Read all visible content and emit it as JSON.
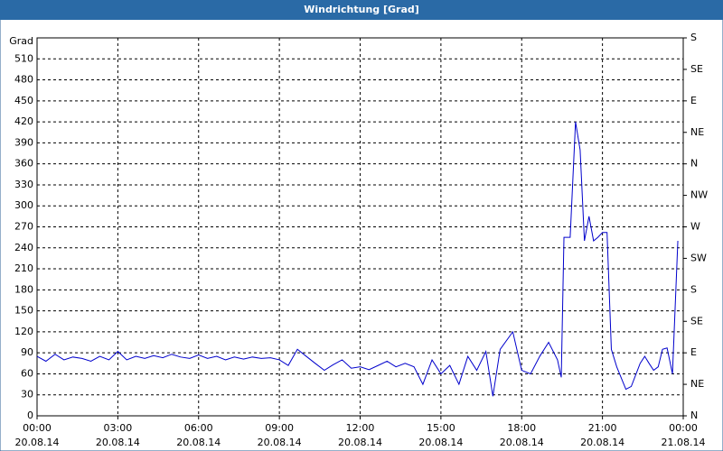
{
  "chart_data": {
    "type": "line",
    "title": "Windrichtung [Grad]",
    "y_label": "Grad",
    "color": "#0000cc",
    "grid": true,
    "xlim": [
      0,
      24
    ],
    "ylim": [
      0,
      540
    ],
    "y2lim": [
      0,
      540
    ],
    "xticks": [
      {
        "value": 0,
        "label": [
          "00:00",
          "20.08.14"
        ]
      },
      {
        "value": 3,
        "label": [
          "03:00",
          "20.08.14"
        ]
      },
      {
        "value": 6,
        "label": [
          "06:00",
          "20.08.14"
        ]
      },
      {
        "value": 9,
        "label": [
          "09:00",
          "20.08.14"
        ]
      },
      {
        "value": 12,
        "label": [
          "12:00",
          "20.08.14"
        ]
      },
      {
        "value": 15,
        "label": [
          "15:00",
          "20.08.14"
        ]
      },
      {
        "value": 18,
        "label": [
          "18:00",
          "20.08.14"
        ]
      },
      {
        "value": 21,
        "label": [
          "21:00",
          "20.08.14"
        ]
      },
      {
        "value": 24,
        "label": [
          "00:00",
          "21.08.14"
        ]
      }
    ],
    "yticks": [
      0,
      30,
      60,
      90,
      120,
      150,
      180,
      210,
      240,
      270,
      300,
      330,
      360,
      390,
      420,
      450,
      480,
      510
    ],
    "y2ticks": [
      {
        "value": 0,
        "label": "N"
      },
      {
        "value": 45,
        "label": "NE"
      },
      {
        "value": 90,
        "label": "E"
      },
      {
        "value": 135,
        "label": "SE"
      },
      {
        "value": 180,
        "label": "S"
      },
      {
        "value": 225,
        "label": "SW"
      },
      {
        "value": 270,
        "label": "W"
      },
      {
        "value": 315,
        "label": "NW"
      },
      {
        "value": 360,
        "label": "N"
      },
      {
        "value": 405,
        "label": "NE"
      },
      {
        "value": 450,
        "label": "E"
      },
      {
        "value": 495,
        "label": "SE"
      },
      {
        "value": 540,
        "label": "S"
      }
    ],
    "x": [
      0,
      0.33,
      0.67,
      1,
      1.33,
      1.67,
      2,
      2.33,
      2.67,
      3,
      3.33,
      3.67,
      4,
      4.33,
      4.67,
      5,
      5.33,
      5.67,
      6,
      6.33,
      6.67,
      7,
      7.33,
      7.67,
      8,
      8.33,
      8.67,
      9,
      9.33,
      9.67,
      10,
      10.33,
      10.67,
      11,
      11.33,
      11.67,
      12,
      12.33,
      12.67,
      13,
      13.33,
      13.67,
      14,
      14.33,
      14.67,
      15,
      15.33,
      15.67,
      16,
      16.33,
      16.67,
      16.93,
      17.2,
      17.67,
      18,
      18.33,
      18.67,
      19,
      19.33,
      19.47,
      19.57,
      19.8,
      20,
      20.17,
      20.33,
      20.5,
      20.67,
      20.83,
      21,
      21.17,
      21.33,
      21.53,
      21.87,
      22.07,
      22.4,
      22.57,
      22.73,
      22.9,
      23.07,
      23.23,
      23.4,
      23.6,
      23.8
    ],
    "values": [
      85,
      78,
      88,
      80,
      84,
      82,
      78,
      85,
      80,
      92,
      80,
      85,
      82,
      86,
      83,
      88,
      84,
      82,
      87,
      82,
      85,
      80,
      84,
      81,
      84,
      82,
      83,
      80,
      72,
      95,
      85,
      75,
      65,
      73,
      80,
      68,
      70,
      66,
      72,
      78,
      70,
      75,
      70,
      45,
      80,
      60,
      72,
      45,
      85,
      65,
      92,
      28,
      95,
      120,
      65,
      60,
      85,
      105,
      80,
      55,
      255,
      255,
      420,
      380,
      250,
      285,
      250,
      255,
      262,
      262,
      95,
      70,
      38,
      42,
      75,
      85,
      75,
      65,
      70,
      95,
      97,
      60,
      250
    ]
  }
}
